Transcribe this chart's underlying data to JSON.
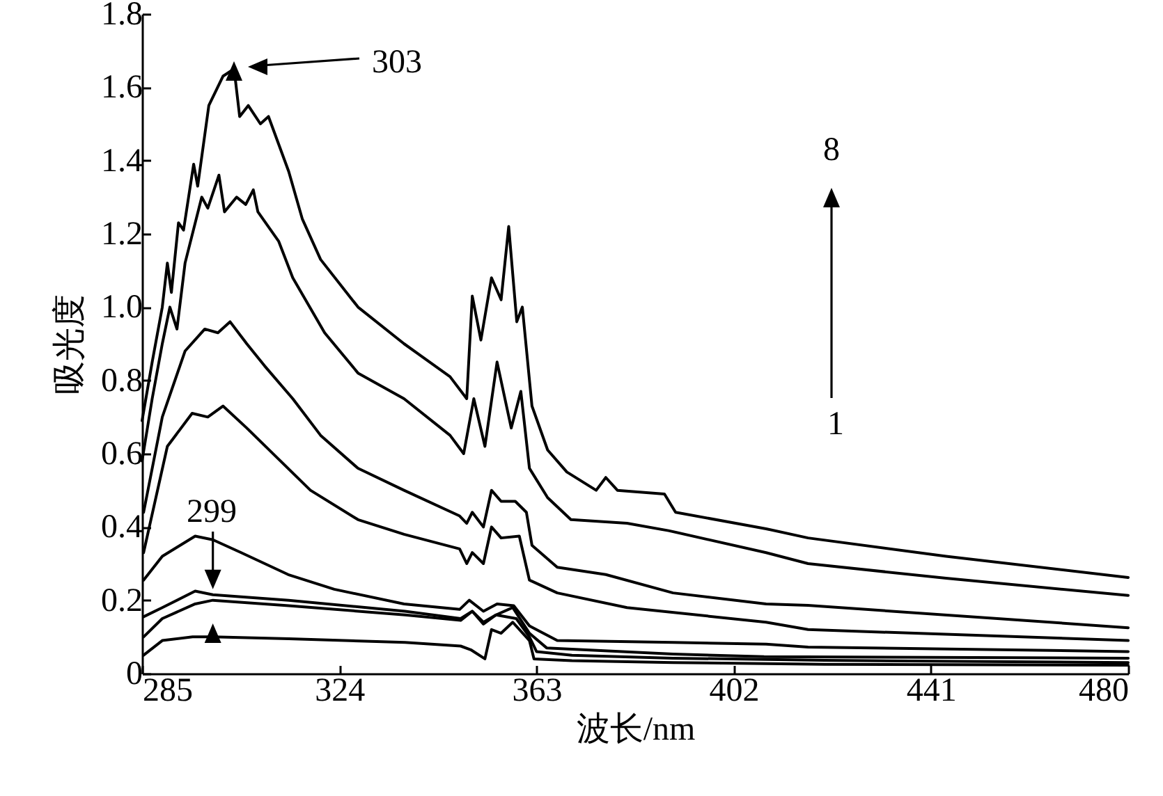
{
  "chart_data": {
    "type": "line",
    "xlabel": "波长/nm",
    "ylabel": "吸光度",
    "xlim": [
      285,
      480
    ],
    "xticks": [
      285,
      324,
      363,
      402,
      441,
      480
    ],
    "ylim": [
      0,
      1.8
    ],
    "yticks": [
      0,
      0.2,
      0.4,
      0.6,
      0.8,
      {
        "value": 1,
        "label": "1.0"
      },
      1.2,
      1.4,
      1.6,
      1.8
    ],
    "grid": false,
    "marker": "none",
    "line_style": "solid",
    "annotations": [
      "303",
      {
        "text": "299",
        "x": 299,
        "y": 0.215
      },
      "8",
      "1"
    ],
    "series": [
      {
        "color": "#000000",
        "x": [
          285.3,
          289,
          295,
          299,
          314,
          337,
          348,
          350,
          352.8,
          354.1,
          356,
          358.3,
          361.6,
          362.5,
          370,
          390,
          420,
          480
        ],
        "values": [
          0.05,
          0.09,
          0.1,
          0.1,
          0.095,
          0.085,
          0.075,
          0.065,
          0.04,
          0.12,
          0.11,
          0.14,
          0.09,
          0.04,
          0.035,
          0.03,
          0.025,
          0.023
        ]
      },
      {
        "color": "#000000",
        "x": [
          285.3,
          289,
          295.5,
          299,
          314,
          337,
          348,
          350.3,
          352.5,
          355,
          359,
          361.6,
          363,
          370,
          390,
          420,
          480
        ],
        "values": [
          0.1,
          0.15,
          0.19,
          0.2,
          0.185,
          0.16,
          0.145,
          0.17,
          0.14,
          0.16,
          0.15,
          0.1,
          0.06,
          0.05,
          0.042,
          0.036,
          0.03
        ]
      },
      {
        "color": "#000000",
        "x": [
          285.3,
          289,
          295.5,
          299,
          314,
          337,
          348,
          350.3,
          352.5,
          355,
          358.3,
          361.6,
          365,
          390,
          408,
          480
        ],
        "values": [
          0.155,
          0.18,
          0.225,
          0.215,
          0.2,
          0.17,
          0.15,
          0.17,
          0.135,
          0.16,
          0.18,
          0.11,
          0.07,
          0.053,
          0.046,
          0.042
        ]
      },
      {
        "color": "#000000",
        "x": [
          285.3,
          289,
          295.5,
          299,
          304.6,
          313.9,
          323,
          336.8,
          347.8,
          349.7,
          352.5,
          355.2,
          358.5,
          361.6,
          367.1,
          390,
          408.4,
          416.7,
          480
        ],
        "values": [
          0.255,
          0.32,
          0.375,
          0.365,
          0.33,
          0.27,
          0.23,
          0.19,
          0.175,
          0.2,
          0.17,
          0.19,
          0.185,
          0.13,
          0.09,
          0.085,
          0.08,
          0.072,
          0.06
        ]
      },
      {
        "color": "#000000",
        "x": [
          285.3,
          290,
          294.9,
          298,
          301,
          305.7,
          312,
          318.3,
          327.7,
          336.8,
          347.8,
          349.2,
          350.3,
          352.5,
          354.1,
          356,
          359.6,
          361.6,
          367.1,
          380.9,
          408.4,
          416.7,
          480
        ],
        "values": [
          0.33,
          0.62,
          0.71,
          0.7,
          0.73,
          0.67,
          0.585,
          0.5,
          0.42,
          0.38,
          0.34,
          0.3,
          0.33,
          0.3,
          0.4,
          0.37,
          0.375,
          0.255,
          0.22,
          0.18,
          0.14,
          0.12,
          0.09
        ]
      },
      {
        "color": "#000000",
        "x": [
          285.3,
          289,
          293.5,
          297.4,
          300,
          302.4,
          305.7,
          309.2,
          314.8,
          320.3,
          327.7,
          336.8,
          347.8,
          349.2,
          350.3,
          352.5,
          354.1,
          356,
          358.8,
          361,
          362.1,
          367.1,
          376.7,
          390,
          408.4,
          416.7,
          480
        ],
        "values": [
          0.44,
          0.7,
          0.88,
          0.94,
          0.93,
          0.96,
          0.9,
          0.84,
          0.75,
          0.65,
          0.56,
          0.5,
          0.43,
          0.41,
          0.44,
          0.4,
          0.5,
          0.47,
          0.47,
          0.44,
          0.35,
          0.29,
          0.27,
          0.22,
          0.19,
          0.186,
          0.125
        ]
      },
      {
        "color": "#000000",
        "x": [
          285,
          287,
          289,
          290.5,
          291.9,
          293.5,
          296.8,
          298,
          300.2,
          301.3,
          303.7,
          305.5,
          307,
          307.9,
          312,
          314.8,
          321.1,
          327.7,
          336.8,
          345.9,
          348.6,
          350.6,
          352.8,
          355.2,
          358,
          359.9,
          361.6,
          365.2,
          369.8,
          380.9,
          389.1,
          408.4,
          416.7,
          444,
          480
        ],
        "values": [
          0.58,
          0.75,
          0.9,
          1.0,
          0.94,
          1.12,
          1.3,
          1.27,
          1.36,
          1.26,
          1.3,
          1.28,
          1.32,
          1.26,
          1.18,
          1.08,
          0.93,
          0.82,
          0.75,
          0.65,
          0.6,
          0.75,
          0.62,
          0.85,
          0.67,
          0.77,
          0.56,
          0.48,
          0.42,
          0.41,
          0.39,
          0.33,
          0.3,
          0.26,
          0.213
        ]
      },
      {
        "color": "#000000",
        "x": [
          285,
          287,
          289,
          290,
          290.8,
          292.2,
          293.2,
          295.2,
          296,
          298.2,
          301,
          303.2,
          304.3,
          306,
          308.4,
          310,
          314,
          316.7,
          320.3,
          327.7,
          336.8,
          345.9,
          349.2,
          350.3,
          352,
          354.1,
          356,
          357.5,
          359.1,
          360.2,
          362.1,
          365.2,
          369,
          374.8,
          376.7,
          379,
          388.3,
          390.5,
          408.4,
          416.7,
          444,
          480
        ],
        "values": [
          0.69,
          0.85,
          1.0,
          1.12,
          1.04,
          1.23,
          1.21,
          1.39,
          1.33,
          1.55,
          1.63,
          1.65,
          1.52,
          1.55,
          1.5,
          1.52,
          1.37,
          1.24,
          1.13,
          1.0,
          0.9,
          0.81,
          0.75,
          1.03,
          0.91,
          1.08,
          1.02,
          1.22,
          0.96,
          1.0,
          0.73,
          0.61,
          0.55,
          0.5,
          0.535,
          0.5,
          0.49,
          0.44,
          0.395,
          0.37,
          0.32,
          0.262
        ]
      }
    ]
  }
}
